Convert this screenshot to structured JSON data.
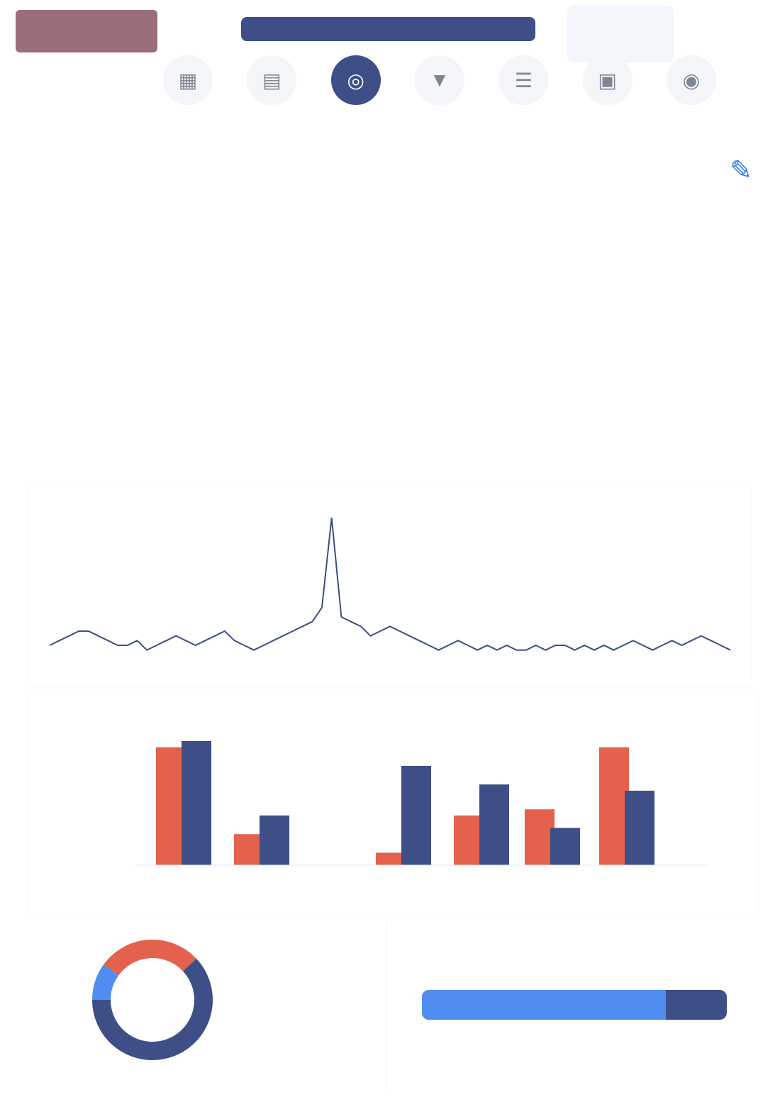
{
  "header": {
    "logo": "",
    "bar_title": "",
    "right_text": ""
  },
  "icon_tabs": [
    {
      "label": "",
      "icon": "calendar-icon",
      "glyph": "▦",
      "active": false
    },
    {
      "label": "",
      "icon": "grid-icon",
      "glyph": "▤",
      "active": false
    },
    {
      "label": "",
      "icon": "globe-icon",
      "glyph": "◎",
      "active": true
    },
    {
      "label": "",
      "icon": "filter-icon",
      "glyph": "▼",
      "active": false
    },
    {
      "label": "",
      "icon": "list-icon",
      "glyph": "☰",
      "active": false
    },
    {
      "label": "",
      "icon": "document-icon",
      "glyph": "▣",
      "active": false
    },
    {
      "label": "",
      "icon": "user-icon",
      "glyph": "◉",
      "active": false
    }
  ],
  "headings": {
    "line1": "",
    "sub1": "",
    "line2": "",
    "sub2": "",
    "line3": "",
    "sub3": "",
    "line4": "",
    "sub4": ""
  },
  "stats": {
    "group_labels": [
      "",
      "",
      "",
      ""
    ],
    "items": [
      {
        "title": "",
        "value": "",
        "tone": "normal"
      },
      {
        "title": "",
        "value": "",
        "tone": "normal"
      },
      {
        "title": "",
        "value": "",
        "tone": "normal"
      },
      {
        "title": "",
        "value": "",
        "tone": "normal"
      },
      {
        "title": "",
        "value": "",
        "tone": "normal"
      },
      {
        "title": "",
        "value": "",
        "tone": "normal"
      },
      {
        "title": "",
        "value": "",
        "tone": "green"
      },
      {
        "title": "",
        "value": "",
        "tone": "red"
      },
      {
        "title": "",
        "value": "",
        "tone": "normal"
      }
    ]
  },
  "colors": {
    "navy": "#3d4f86",
    "coral": "#e4614d",
    "blue": "#4f8df0",
    "line": "#3d4f86"
  },
  "chart_data": [
    {
      "type": "line",
      "title": "",
      "xlabel": "",
      "ylabel": "",
      "series": [
        {
          "name": "",
          "values": [
            3,
            4,
            5,
            6,
            6,
            5,
            4,
            3,
            3,
            4,
            2,
            3,
            4,
            5,
            4,
            3,
            4,
            5,
            6,
            4,
            3,
            2,
            3,
            4,
            5,
            6,
            7,
            8,
            11,
            30,
            9,
            8,
            7,
            5,
            6,
            7,
            6,
            5,
            4,
            3,
            2,
            3,
            4,
            3,
            2,
            3,
            2,
            3,
            2,
            2,
            3,
            2,
            3,
            3,
            2,
            3,
            2,
            3,
            2,
            3,
            4,
            3,
            2,
            3,
            4,
            3,
            4,
            5,
            4,
            3,
            2
          ]
        }
      ]
    },
    {
      "type": "bar",
      "title": "",
      "xlabel": "",
      "ylabel": "",
      "categories": [
        "",
        "",
        "",
        "",
        "",
        "",
        ""
      ],
      "series": [
        {
          "name": "",
          "values": [
            95,
            25,
            0,
            10,
            40,
            45,
            95
          ]
        },
        {
          "name": "",
          "values": [
            100,
            40,
            0,
            80,
            65,
            30,
            60
          ]
        }
      ]
    },
    {
      "type": "pie",
      "title": "",
      "categories": [
        "",
        "",
        ""
      ],
      "values": [
        28,
        62,
        10
      ]
    },
    {
      "type": "bar",
      "title": "",
      "categories": [
        ""
      ],
      "series": [
        {
          "name": "",
          "values": [
            80
          ]
        },
        {
          "name": "",
          "values": [
            20
          ]
        }
      ]
    }
  ]
}
